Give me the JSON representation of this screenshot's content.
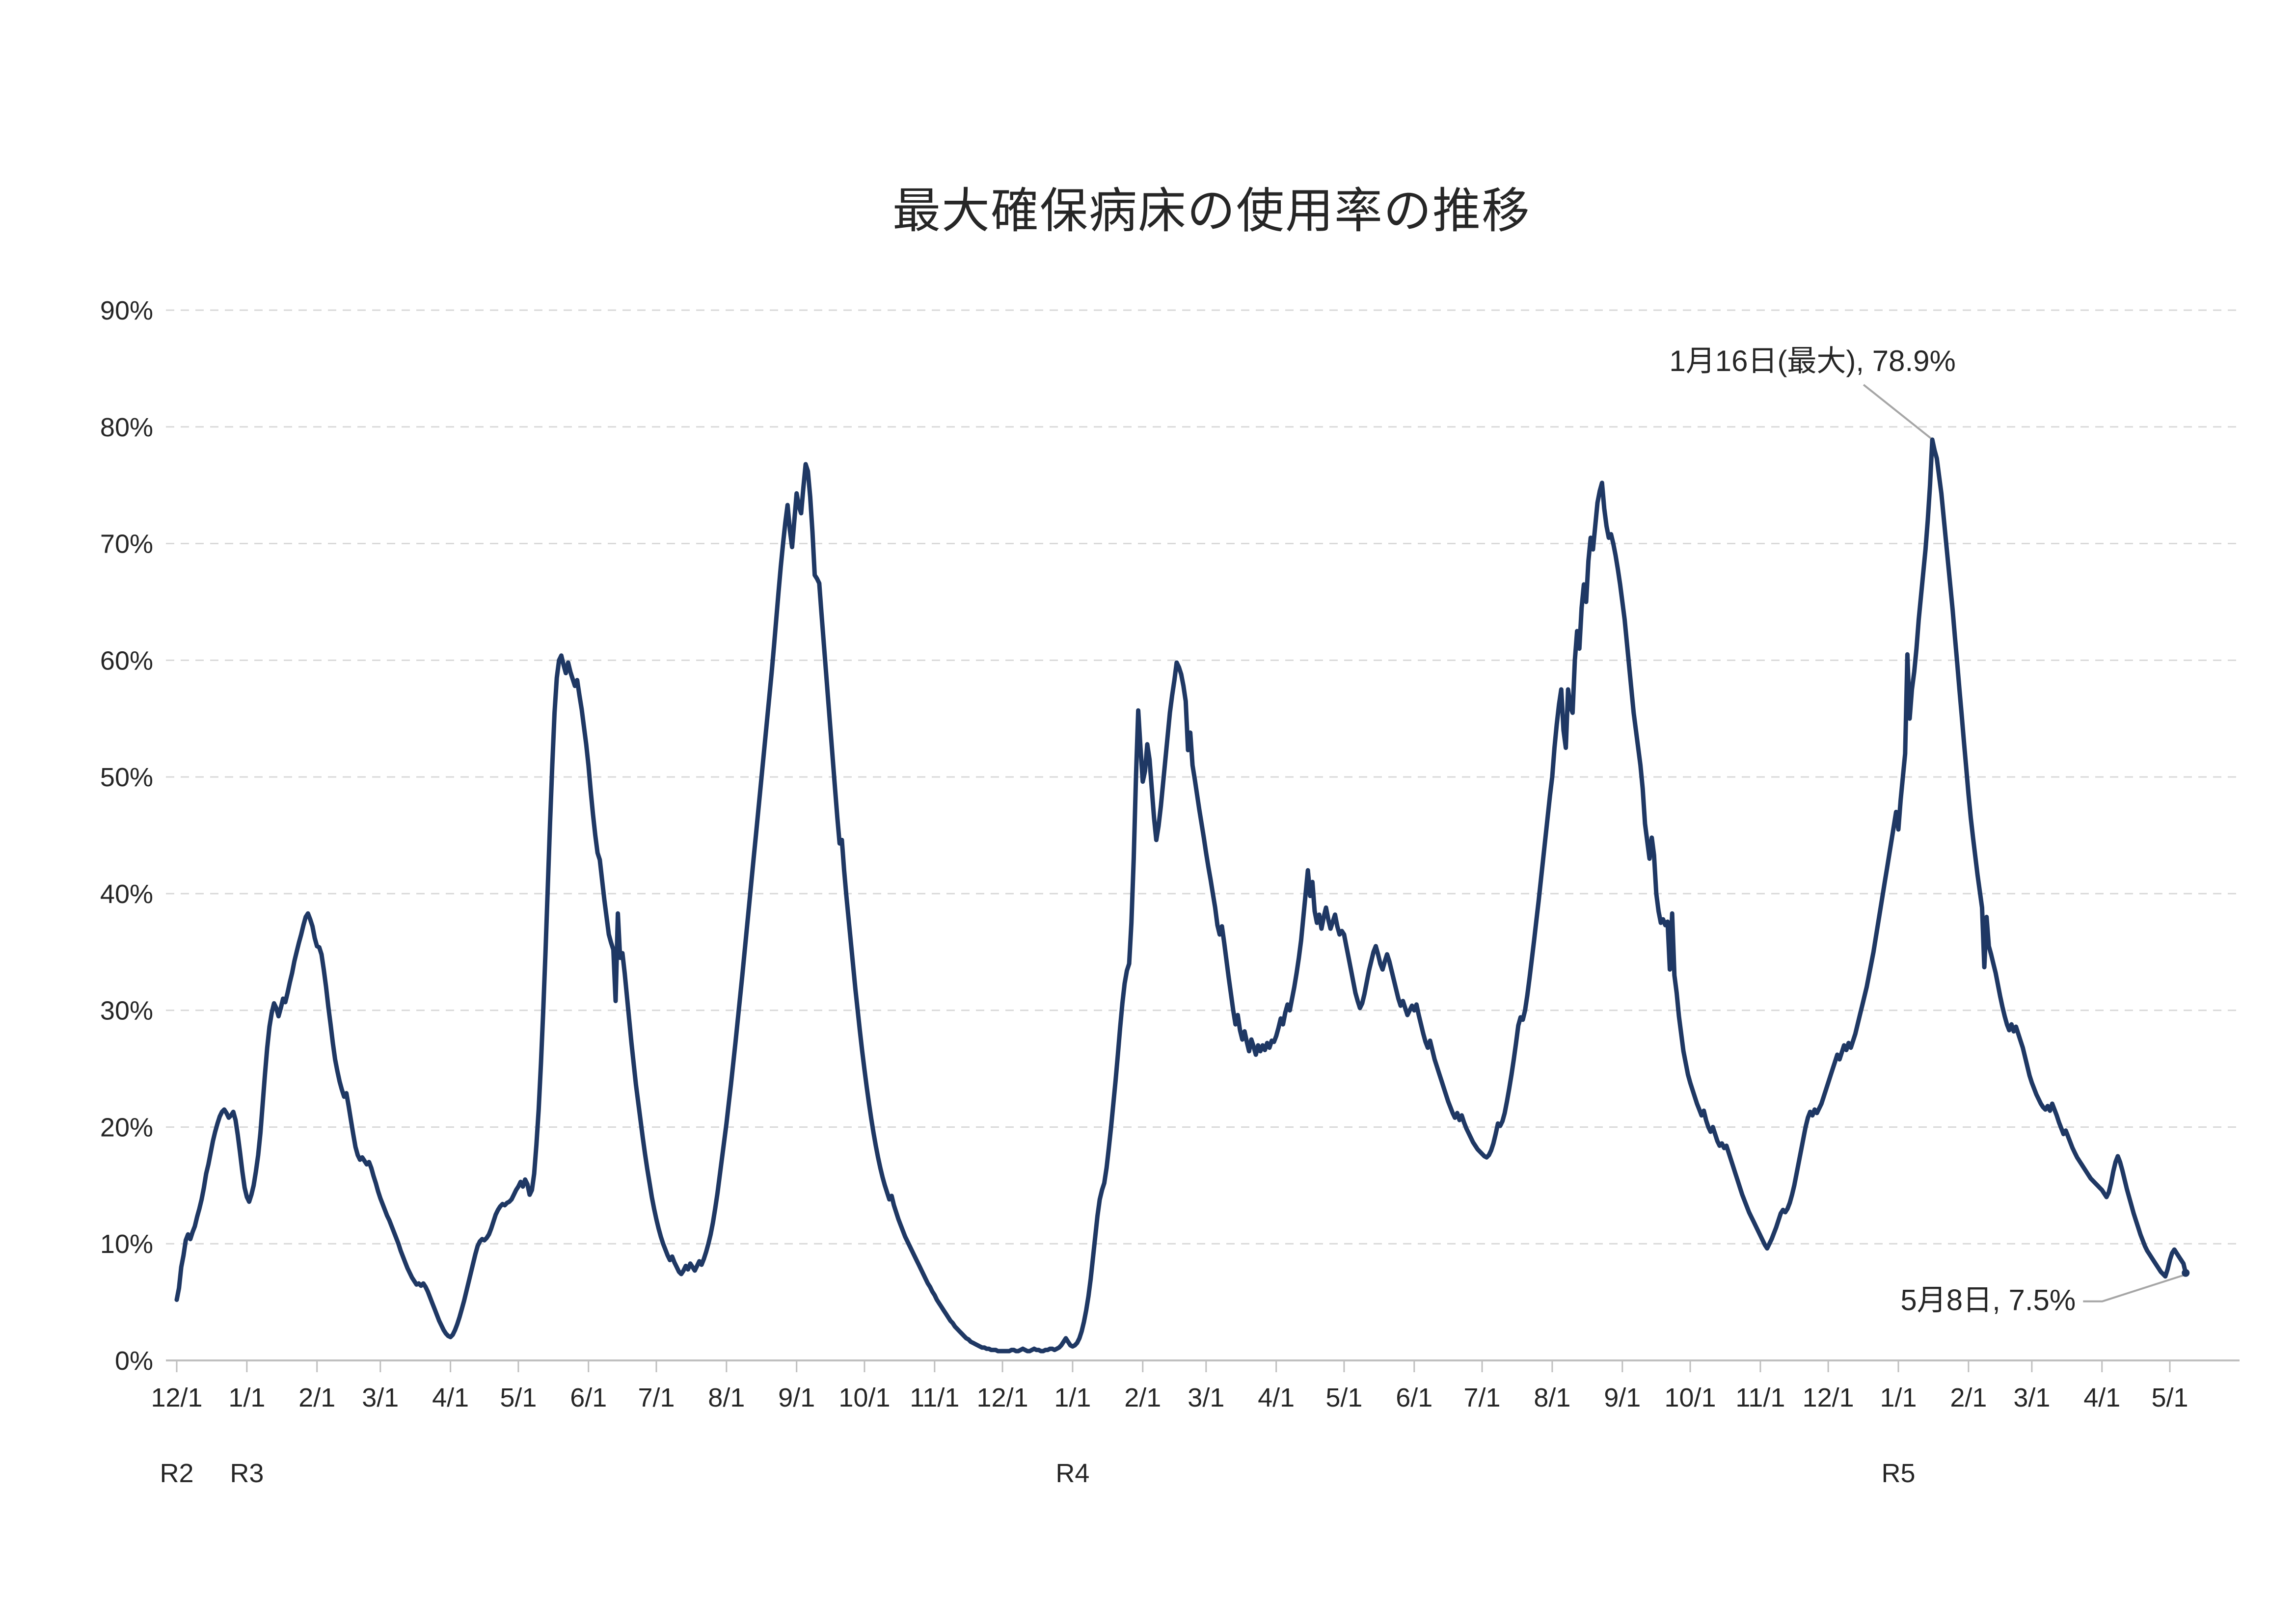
{
  "title": "最大確保病床の使用率の推移",
  "chart_data": {
    "type": "line",
    "title": "最大確保病床の使用率の推移",
    "xlabel": "",
    "ylabel": "",
    "grid": "horizontal-dashed",
    "legend": "none",
    "y_axis": {
      "min": 0,
      "max": 90,
      "step": 10,
      "unit": "%",
      "labels": [
        "0%",
        "10%",
        "20%",
        "30%",
        "40%",
        "50%",
        "60%",
        "70%",
        "80%",
        "90%"
      ]
    },
    "x_axis": {
      "tick_labels": [
        "12/1",
        "1/1",
        "2/1",
        "3/1",
        "4/1",
        "5/1",
        "6/1",
        "7/1",
        "8/1",
        "9/1",
        "10/1",
        "11/1",
        "12/1",
        "1/1",
        "2/1",
        "3/1",
        "4/1",
        "5/1",
        "6/1",
        "7/1",
        "8/1",
        "9/1",
        "10/1",
        "11/1",
        "12/1",
        "1/1",
        "2/1",
        "3/1",
        "4/1",
        "5/1"
      ],
      "era_labels": [
        {
          "label": "R2",
          "tick_index": 0
        },
        {
          "label": "R3",
          "tick_index": 1
        },
        {
          "label": "R4",
          "tick_index": 13
        },
        {
          "label": "R5",
          "tick_index": 25
        }
      ]
    },
    "annotations": [
      {
        "text": "1月16日(最大), 78.9%",
        "date_label": "1月16日(最大)",
        "value": 78.9,
        "day_index": 776
      },
      {
        "text": "5月8日, 7.5%",
        "date_label": "5月8日",
        "value": 7.5,
        "day_index": 888
      }
    ],
    "colors": {
      "line": "#1f3864",
      "gridline": "#d9d9d9",
      "axis": "#bfbfbf",
      "leader_line": "#a6a6a6",
      "text": "#262626"
    },
    "monthly_values": [
      {
        "month": "2020-12",
        "values": [
          5.2,
          6.2,
          8.0,
          9.0,
          10.3,
          10.8,
          10.4,
          11.0,
          11.5,
          12.3,
          13.0,
          13.8,
          14.8,
          16.0,
          16.8,
          17.8,
          18.8,
          19.6,
          20.3,
          20.9,
          21.3,
          21.5,
          21.2,
          20.8,
          21.0,
          21.3,
          20.6,
          19.3,
          17.8,
          16.2,
          14.8
        ]
      },
      {
        "month": "2021-01",
        "values": [
          14.0,
          13.6,
          14.2,
          15.0,
          16.2,
          17.6,
          19.5,
          22.0,
          24.5,
          26.8,
          28.6,
          29.8,
          30.6,
          30.2,
          29.5,
          30.2,
          31.0,
          30.7,
          31.5,
          32.4,
          33.2,
          34.2,
          35.0,
          35.8,
          36.5,
          37.3,
          38.0,
          38.3,
          37.8,
          37.2,
          36.2
        ]
      },
      {
        "month": "2021-02",
        "values": [
          35.5,
          35.4,
          34.8,
          33.5,
          32.0,
          30.3,
          28.8,
          27.2,
          25.8,
          24.8,
          23.9,
          23.2,
          22.6,
          22.9,
          21.8,
          20.6,
          19.4,
          18.3,
          17.6,
          17.2,
          17.4,
          17.1,
          16.8,
          17.0,
          16.5,
          15.8,
          15.2,
          14.5
        ]
      },
      {
        "month": "2021-03",
        "values": [
          13.9,
          13.4,
          12.9,
          12.4,
          12.0,
          11.5,
          11.0,
          10.5,
          10.0,
          9.4,
          8.9,
          8.4,
          7.9,
          7.5,
          7.1,
          6.8,
          6.5,
          6.6,
          6.4,
          6.6,
          6.3,
          5.9,
          5.4,
          4.9,
          4.4,
          3.9,
          3.4,
          3.0,
          2.6,
          2.3,
          2.1
        ]
      },
      {
        "month": "2021-04",
        "values": [
          2.0,
          2.2,
          2.6,
          3.1,
          3.7,
          4.4,
          5.1,
          5.9,
          6.7,
          7.5,
          8.3,
          9.1,
          9.8,
          10.2,
          10.4,
          10.3,
          10.5,
          10.8,
          11.3,
          11.9,
          12.5,
          12.9,
          13.2,
          13.4,
          13.3,
          13.5,
          13.6,
          13.8,
          14.2,
          14.6
        ]
      },
      {
        "month": "2021-05",
        "values": [
          14.9,
          15.3,
          14.9,
          15.5,
          15.1,
          14.2,
          14.6,
          16.0,
          18.5,
          21.5,
          25.5,
          30.0,
          35.0,
          40.5,
          46.0,
          51.0,
          55.5,
          58.5,
          60.0,
          60.4,
          59.6,
          58.9,
          59.8,
          59.0,
          58.4,
          57.8,
          58.3,
          57.0,
          55.8,
          54.3,
          52.8
        ]
      },
      {
        "month": "2021-06",
        "values": [
          51.0,
          48.8,
          46.8,
          45.0,
          43.5,
          42.9,
          41.2,
          39.5,
          38.0,
          36.5,
          35.8,
          35.2,
          30.8,
          38.3,
          34.5,
          34.9,
          33.2,
          31.2,
          29.2,
          27.2,
          25.4,
          23.6,
          22.1,
          20.6,
          19.1,
          17.7,
          16.4,
          15.2,
          14.0,
          13.0
        ]
      },
      {
        "month": "2021-07",
        "values": [
          12.1,
          11.3,
          10.6,
          10.0,
          9.5,
          9.0,
          8.6,
          8.9,
          8.4,
          8.0,
          7.6,
          7.4,
          7.7,
          8.1,
          7.8,
          8.3,
          8.0,
          7.7,
          8.1,
          8.5,
          8.2,
          8.7,
          9.3,
          10.0,
          10.8,
          11.8,
          13.0,
          14.3,
          15.8,
          17.3,
          18.8
        ]
      },
      {
        "month": "2021-08",
        "values": [
          20.3,
          22.0,
          23.7,
          25.5,
          27.3,
          29.2,
          31.1,
          33.0,
          35.0,
          37.0,
          39.0,
          41.0,
          43.0,
          45.0,
          47.0,
          49.0,
          51.0,
          53.0,
          55.0,
          57.0,
          59.0,
          61.2,
          63.5,
          65.8,
          68.0,
          70.0,
          71.8,
          73.3,
          71.2,
          69.7,
          72.0
        ]
      },
      {
        "month": "2021-09",
        "values": [
          74.3,
          73.2,
          72.6,
          74.8,
          76.8,
          76.2,
          74.0,
          71.0,
          67.3,
          67.0,
          66.6,
          64.0,
          61.5,
          59.0,
          56.5,
          54.0,
          51.5,
          49.0,
          46.5,
          44.3,
          44.6,
          42.0,
          39.8,
          37.8,
          35.8,
          33.8,
          31.8,
          30.0,
          28.2,
          26.5
        ]
      },
      {
        "month": "2021-10",
        "values": [
          24.9,
          23.4,
          22.0,
          20.7,
          19.5,
          18.4,
          17.4,
          16.5,
          15.7,
          15.0,
          14.4,
          13.8,
          14.1,
          13.3,
          12.7,
          12.1,
          11.6,
          11.1,
          10.6,
          10.2,
          9.8,
          9.4,
          9.0,
          8.6,
          8.2,
          7.8,
          7.4,
          7.0,
          6.6,
          6.3,
          5.9
        ]
      },
      {
        "month": "2021-11",
        "values": [
          5.6,
          5.2,
          4.9,
          4.6,
          4.3,
          4.0,
          3.7,
          3.4,
          3.2,
          2.9,
          2.7,
          2.5,
          2.3,
          2.1,
          1.9,
          1.8,
          1.6,
          1.5,
          1.4,
          1.3,
          1.2,
          1.1,
          1.1,
          1.0,
          1.0,
          0.9,
          0.9,
          0.9,
          0.8,
          0.8
        ]
      },
      {
        "month": "2021-12",
        "values": [
          0.8,
          0.8,
          0.8,
          0.8,
          0.9,
          0.9,
          0.8,
          0.8,
          0.9,
          1.0,
          0.9,
          0.8,
          0.8,
          0.9,
          1.0,
          0.9,
          0.9,
          0.8,
          0.8,
          0.9,
          0.9,
          1.0,
          1.0,
          0.9,
          1.0,
          1.1,
          1.3,
          1.6,
          1.9,
          1.6,
          1.3
        ]
      },
      {
        "month": "2022-01",
        "values": [
          1.2,
          1.3,
          1.5,
          1.9,
          2.5,
          3.3,
          4.3,
          5.5,
          7.0,
          8.8,
          10.6,
          12.4,
          13.8,
          14.6,
          15.2,
          16.5,
          18.2,
          20.0,
          22.0,
          24.0,
          26.2,
          28.5,
          30.6,
          32.3,
          33.4,
          34.0,
          37.5,
          43.0,
          50.0,
          55.7,
          52.5
        ]
      },
      {
        "month": "2022-02",
        "values": [
          49.6,
          50.5,
          52.8,
          51.5,
          49.0,
          46.5,
          44.6,
          45.8,
          47.5,
          49.5,
          51.5,
          53.5,
          55.5,
          57.0,
          58.3,
          59.8,
          59.4,
          58.8,
          57.8,
          56.5,
          52.3,
          53.8,
          51.0,
          49.8,
          48.5,
          47.2,
          46.0,
          44.8
        ]
      },
      {
        "month": "2022-03",
        "values": [
          43.5,
          42.3,
          41.2,
          40.0,
          38.8,
          37.3,
          36.5,
          37.2,
          35.8,
          34.3,
          32.8,
          31.4,
          30.0,
          28.8,
          29.6,
          28.3,
          27.5,
          28.2,
          27.3,
          26.5,
          27.5,
          26.9,
          26.2,
          27.0,
          26.5,
          27.0,
          26.6,
          27.2,
          26.8,
          27.4,
          27.3
        ]
      },
      {
        "month": "2022-04",
        "values": [
          27.8,
          28.5,
          29.3,
          28.8,
          29.8,
          30.5,
          30.0,
          31.0,
          32.0,
          33.2,
          34.5,
          36.0,
          38.0,
          40.0,
          42.0,
          39.8,
          41.0,
          38.5,
          37.5,
          38.2,
          37.0,
          38.0,
          38.8,
          37.8,
          37.0,
          37.6,
          38.2,
          37.2,
          36.5,
          36.8
        ]
      },
      {
        "month": "2022-05",
        "values": [
          36.5,
          35.5,
          34.5,
          33.5,
          32.5,
          31.5,
          30.8,
          30.2,
          30.6,
          31.4,
          32.4,
          33.4,
          34.2,
          35.0,
          35.5,
          34.8,
          34.0,
          33.5,
          34.2,
          34.8,
          34.2,
          33.4,
          32.6,
          31.8,
          31.0,
          30.4,
          30.8,
          30.2,
          29.6,
          30.0,
          30.4
        ]
      },
      {
        "month": "2022-06",
        "values": [
          30.0,
          30.5,
          29.6,
          28.8,
          28.0,
          27.3,
          26.8,
          27.4,
          26.6,
          25.8,
          25.2,
          24.6,
          24.0,
          23.4,
          22.8,
          22.2,
          21.7,
          21.2,
          20.8,
          21.2,
          20.6,
          21.0,
          20.4,
          19.9,
          19.5,
          19.1,
          18.7,
          18.4,
          18.1,
          17.9
        ]
      },
      {
        "month": "2022-07",
        "values": [
          17.7,
          17.5,
          17.4,
          17.6,
          18.0,
          18.6,
          19.4,
          20.3,
          20.1,
          20.5,
          21.2,
          22.2,
          23.3,
          24.5,
          25.8,
          27.2,
          28.7,
          29.4,
          29.2,
          30.0,
          31.3,
          32.8,
          34.4,
          36.0,
          37.7,
          39.4,
          41.2,
          43.0,
          44.8,
          46.6,
          48.4
        ]
      },
      {
        "month": "2022-08",
        "values": [
          50.0,
          52.5,
          54.5,
          56.2,
          57.5,
          54.0,
          52.5,
          57.5,
          56.0,
          55.5,
          60.0,
          62.5,
          61.0,
          64.5,
          66.5,
          65.0,
          68.5,
          70.5,
          69.5,
          71.5,
          73.5,
          74.5,
          75.2,
          73.0,
          71.5,
          70.5,
          70.8,
          70.0,
          69.0,
          67.8,
          66.5
        ]
      },
      {
        "month": "2022-09",
        "values": [
          65.0,
          63.5,
          61.5,
          59.5,
          57.5,
          55.5,
          54.0,
          52.5,
          51.0,
          49.0,
          46.0,
          44.5,
          43.0,
          44.8,
          43.3,
          40.0,
          38.5,
          37.5,
          37.8,
          37.3,
          37.6,
          33.5,
          38.3,
          33.0,
          31.5,
          29.5,
          28.0,
          26.5,
          25.5,
          24.5
        ]
      },
      {
        "month": "2022-10",
        "values": [
          23.8,
          23.2,
          22.6,
          22.0,
          21.5,
          21.0,
          21.4,
          20.6,
          20.0,
          19.6,
          20.0,
          19.4,
          18.8,
          18.4,
          18.6,
          18.2,
          18.4,
          17.8,
          17.2,
          16.6,
          16.0,
          15.4,
          14.8,
          14.2,
          13.7,
          13.2,
          12.7,
          12.3,
          11.9,
          11.5,
          11.1
        ]
      },
      {
        "month": "2022-11",
        "values": [
          10.7,
          10.3,
          9.9,
          9.6,
          10.0,
          10.4,
          10.9,
          11.4,
          12.0,
          12.6,
          12.9,
          12.7,
          13.0,
          13.5,
          14.2,
          15.0,
          16.0,
          17.0,
          18.0,
          19.0,
          20.0,
          20.8,
          21.3,
          21.0,
          21.5,
          21.2,
          21.6,
          22.0,
          22.6,
          23.2
        ]
      },
      {
        "month": "2022-12",
        "values": [
          23.8,
          24.4,
          25.0,
          25.6,
          26.2,
          25.8,
          26.4,
          27.0,
          26.6,
          27.2,
          26.8,
          27.4,
          28.0,
          28.8,
          29.6,
          30.4,
          31.2,
          32.0,
          33.0,
          34.0,
          35.0,
          36.2,
          37.4,
          38.6,
          39.8,
          41.0,
          42.2,
          43.4,
          44.6,
          45.8,
          47.0
        ]
      },
      {
        "month": "2023-01",
        "values": [
          45.5,
          48.0,
          50.0,
          52.0,
          60.5,
          55.0,
          57.5,
          59.0,
          61.0,
          63.5,
          65.5,
          67.5,
          69.5,
          72.0,
          75.0,
          78.9,
          78.0,
          77.3,
          75.8,
          74.3,
          72.3,
          70.3,
          68.3,
          66.3,
          64.3,
          62.0,
          59.8,
          57.5,
          55.3,
          53.0,
          50.8
        ]
      },
      {
        "month": "2023-02",
        "values": [
          48.5,
          46.5,
          44.8,
          43.2,
          41.6,
          40.2,
          38.8,
          33.7,
          38.0,
          35.5,
          34.8,
          34.0,
          33.2,
          32.2,
          31.2,
          30.3,
          29.5,
          28.8,
          28.3,
          28.8,
          28.2,
          28.6,
          28.0,
          27.4,
          26.8,
          26.0,
          25.2,
          24.4
        ]
      },
      {
        "month": "2023-03",
        "values": [
          23.8,
          23.3,
          22.8,
          22.4,
          22.0,
          21.7,
          21.5,
          21.8,
          21.4,
          22.0,
          21.5,
          21.0,
          20.4,
          19.9,
          19.4,
          19.7,
          19.2,
          18.7,
          18.2,
          17.8,
          17.4,
          17.1,
          16.8,
          16.5,
          16.2,
          15.9,
          15.6,
          15.4,
          15.2,
          15.0,
          14.8
        ]
      },
      {
        "month": "2023-04",
        "values": [
          14.6,
          14.3,
          14.0,
          14.4,
          15.2,
          16.2,
          17.0,
          17.5,
          17.0,
          16.3,
          15.5,
          14.7,
          14.0,
          13.3,
          12.6,
          12.0,
          11.4,
          10.8,
          10.3,
          9.8,
          9.4,
          9.1,
          8.8,
          8.5,
          8.2,
          7.9,
          7.6,
          7.4,
          7.2,
          7.8
        ]
      },
      {
        "month": "2023-05",
        "values": [
          8.6,
          9.2,
          9.5,
          9.2,
          8.9,
          8.6,
          8.3,
          7.5
        ]
      }
    ]
  }
}
